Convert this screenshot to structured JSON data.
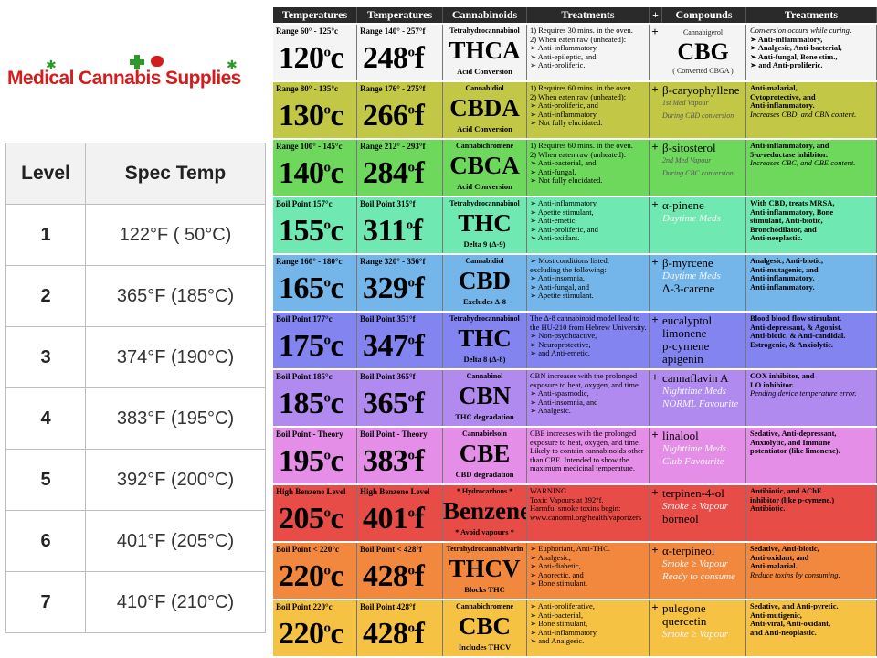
{
  "logo": {
    "text": "Medical Cannabis Supplies"
  },
  "level_table": {
    "headers": [
      "Level",
      "Spec Temp"
    ],
    "rows": [
      {
        "level": "1",
        "temp": "122°F ( 50°C)"
      },
      {
        "level": "2",
        "temp": "365°F (185°C)"
      },
      {
        "level": "3",
        "temp": "374°F (190°C)"
      },
      {
        "level": "4",
        "temp": "383°F (195°C)"
      },
      {
        "level": "5",
        "temp": "392°F (200°C)"
      },
      {
        "level": "6",
        "temp": "401°F (205°C)"
      },
      {
        "level": "7",
        "temp": "410°F (210°C)"
      }
    ]
  },
  "chart": {
    "headers": [
      "Temperatures",
      "Temperatures",
      "Cannabinoids",
      "Treatments",
      "+",
      "Compounds",
      "Treatments"
    ],
    "rows": [
      {
        "color": "#f4f4f4",
        "c_label": "Range 60° - 125°c",
        "c_val": "120",
        "c_unit": "c",
        "f_label": "Range 140° - 257°f",
        "f_val": "248",
        "f_unit": "f",
        "cab_name": "Tetrahydrocannabinol",
        "cab": "THCA",
        "cab_note": "Acid Conversion",
        "treat": [
          "1) Requires 30 mins. in the oven.",
          "2) When eaten raw (unheated):",
          "➢ Anti-inflammatory,",
          "➢ Anti-epileptic, and",
          "➢ Anti-proliferic."
        ],
        "plus": "+",
        "comp": [
          "Cannabigerol",
          "CBG",
          "( Converted CBGA )"
        ],
        "treat2": [
          "Conversion occurs while curing.",
          "➢ Anti-inflammatory,",
          "➢ Analgesic, Anti-bacterial,",
          "➢ Anti-fungal, Bone stim.,",
          "➢ and Anti-proliferic."
        ]
      },
      {
        "color": "#c2c845",
        "c_label": "Range 80° - 135°c",
        "c_val": "130",
        "c_unit": "c",
        "f_label": "Range 176° - 275°f",
        "f_val": "266",
        "f_unit": "f",
        "cab_name": "Cannabidiol",
        "cab": "CBDA",
        "cab_note": "Acid Conversion",
        "treat": [
          "1) Requires 60 mins. in the oven.",
          "2) When eaten raw (unheated):",
          "➢ Anti-proliferic, and",
          "➢ Anti-inflammatory.",
          "➢ Not fully elucidated."
        ],
        "plus": "+",
        "comp": [
          "β-caryophyllene",
          "",
          "1st Med Vapour",
          "During CBD conversion"
        ],
        "treat2": [
          "Anti-malarial,",
          "Cytoprotective, and",
          "Anti-inflammatory.",
          "Increases CBD, and CBN content."
        ]
      },
      {
        "color": "#6ed85c",
        "c_label": "Range 100° - 145°c",
        "c_val": "140",
        "c_unit": "c",
        "f_label": "Range 212° - 293°f",
        "f_val": "284",
        "f_unit": "f",
        "cab_name": "Cannabichromene",
        "cab": "CBCA",
        "cab_note": "Acid Conversion",
        "treat": [
          "1) Requires 60 mins. in the oven.",
          "2) When eaten raw (unheated):",
          "➢ Anti-bacterial, and",
          "➢ Anti-fungal.",
          "➢ Not fully elucidated."
        ],
        "plus": "+",
        "comp": [
          "β-sitosterol",
          "",
          "2nd Med Vapour",
          "During CBC conversion"
        ],
        "treat2": [
          "Anti-inflammatory, and",
          "5-α-reductase inhibitor.",
          "",
          "Increases CBC, and CBE content."
        ]
      },
      {
        "color": "#6fe8b2",
        "c_label": "Boil Point 157°c",
        "c_val": "155",
        "c_unit": "c",
        "f_label": "Boil Point 315°f",
        "f_val": "311",
        "f_unit": "f",
        "cab_name": "Tetrahydrocannabinol",
        "cab": "THC",
        "cab_note": "Delta 9 (Δ-9)",
        "treat": [
          "➢ Anti-inflammatory,",
          "➢ Apetite stimulant,",
          "➢ Anti-emetic,",
          "➢ Anti-proliferic, and",
          "➢ Anti-oxidant."
        ],
        "plus": "+",
        "comp": [
          "α-pinene",
          "",
          "Daytime Meds"
        ],
        "treat2": [
          "With CBD, treats MRSA,",
          "Anti-inflammatory, Bone",
          "stimulant, Anti-biotic,",
          "Bronchodilator, and",
          "Anti-neoplastic."
        ]
      },
      {
        "color": "#74b6e9",
        "c_label": "Range 160° - 180°c",
        "c_val": "165",
        "c_unit": "c",
        "f_label": "Range 320° - 356°f",
        "f_val": "329",
        "f_unit": "f",
        "cab_name": "Cannabidiol",
        "cab": "CBD",
        "cab_note": "Excludes Δ-8",
        "treat": [
          "➢ Most conditions listed,",
          "excluding the following:",
          "➢ Anti-insomnia,",
          "➢ Anti-fungal, and",
          "➢ Apetite stimulant."
        ],
        "plus": "+",
        "comp": [
          "β-myrcene",
          "Daytime Meds",
          "Δ-3-carene"
        ],
        "treat2": [
          "Analgesic, Anti-biotic,",
          "Anti-mutagenic, and",
          "Anti-inflammatory.",
          "Anti-inflammatory."
        ]
      },
      {
        "color": "#8384f0",
        "c_label": "Boil Point 177°c",
        "c_val": "175",
        "c_unit": "c",
        "f_label": "Boil Point 351°f",
        "f_val": "347",
        "f_unit": "f",
        "cab_name": "Tetrahydrocannabinol",
        "cab": "THC",
        "cab_note": "Delta 8 (Δ-8)",
        "treat": [
          "The Δ-8 cannabinoid model lead to",
          "the HU-210 from Hebrew University.",
          "➢ Non-psychoactive,",
          "➢ Neuroprotective,",
          "➢ and Anti-emetic."
        ],
        "plus": "+",
        "comp": [
          "eucalyptol",
          "limonene",
          "p-cymene",
          "apigenin"
        ],
        "treat2": [
          "Blood blood flow stimulant.",
          "Anti-depressant, & Agonist.",
          "Anti-biotic, & Anti-candidal.",
          "Estrogenic, & Anxiolytic."
        ]
      },
      {
        "color": "#b18af0",
        "c_label": "Boil Point 185°c",
        "c_val": "185",
        "c_unit": "c",
        "f_label": "Boil Point 365°f",
        "f_val": "365",
        "f_unit": "f",
        "cab_name": "Cannabinol",
        "cab": "CBN",
        "cab_note": "THC degradation",
        "treat": [
          "CBN increases with the prolonged",
          "exposure to heat, oxygen, and time.",
          "➢ Anti-spasmodic,",
          "➢ Anti-insomnia, and",
          "➢ Analgesic."
        ],
        "plus": "+",
        "comp": [
          "cannaflavin A",
          "Nighttime Meds",
          "NORML Favourite"
        ],
        "treat2": [
          "COX inhibitor, and",
          "LO inhibitor.",
          "",
          "Pending device temperature error."
        ]
      },
      {
        "color": "#e48ee7",
        "c_label": "Boil Point - Theory",
        "c_val": "195",
        "c_unit": "c",
        "f_label": "Boil Point - Theory",
        "f_val": "383",
        "f_unit": "f",
        "cab_name": "Cannabielsoin",
        "cab": "CBE",
        "cab_note": "CBD degradation",
        "treat": [
          "CBE increases with the prolonged",
          "exposure to heat, oxygen, and time.",
          "Likely to contain cannabinoids other",
          "than CBE. Intended to show the",
          "maximum medicinal temperature."
        ],
        "plus": "+",
        "comp": [
          "linalool",
          "Nighttime Meds",
          "Club Favourite"
        ],
        "treat2": [
          "Sedative, Anti-depressant,",
          "Anxiolytic, and Immune",
          "potentiator (like limonene)."
        ]
      },
      {
        "color": "#e84c47",
        "c_label": "High Benzene Level",
        "c_val": "205",
        "c_unit": "c",
        "f_label": "High Benzene Level",
        "f_val": "401",
        "f_unit": "f",
        "cab_name": "* Hydrocarbons *",
        "cab": "Benzene",
        "cab_note": "* Avoid vapours *",
        "treat": [
          "WARNING",
          "Toxic Vapours at 392°f.",
          "Harmful smoke toxins begin:",
          "www.canorml.org/health/vaporizers"
        ],
        "plus": "+",
        "comp": [
          "terpinen-4-ol",
          "Smoke ≥ Vapour",
          "borneol"
        ],
        "treat2": [
          "Antibiotic, and AChE",
          "inhibitor (like p-cymene.)",
          "",
          "Antibiotic."
        ]
      },
      {
        "color": "#f2883e",
        "c_label": "Boil Point < 220°c",
        "c_val": "220",
        "c_unit": "c",
        "f_label": "Boil Point < 428°f",
        "f_val": "428",
        "f_unit": "f",
        "cab_name": "Tetrahydrocannabivarin",
        "cab": "THCV",
        "cab_note": "Blocks THC",
        "treat": [
          "➢ Euphoriant, Anti-THC.",
          "➢ Analgesic,",
          "➢ Anti-diabetic,",
          "➢ Anorectic, and",
          "➢ Bone stimulant."
        ],
        "plus": "+",
        "comp": [
          "α-terpineol",
          "Smoke ≥ Vapour",
          "Ready to consume"
        ],
        "treat2": [
          "Sedative, Anti-biotic,",
          "Anti-oxidant, and",
          "Anti-malarial.",
          "Reduce toxins by consuming."
        ]
      },
      {
        "color": "#f5c243",
        "c_label": "Boil Point 220°c",
        "c_val": "220",
        "c_unit": "c",
        "f_label": "Boil Point 428°f",
        "f_val": "428",
        "f_unit": "f",
        "cab_name": "Cannabichromene",
        "cab": "CBC",
        "cab_note": "Includes THCV",
        "treat": [
          "➢ Anti-proliferative,",
          "➢ Anti-bacterial,",
          "➢ Bone stimulant,",
          "➢ Anti-inflammatory,",
          "➢ and Analgesic."
        ],
        "plus": "+",
        "comp": [
          "pulegone",
          "quercetin",
          "Smoke ≥ Vapour"
        ],
        "treat2": [
          "Sedative, and Anti-pyretic.",
          "",
          "Anti-mutigenic,",
          "Anti-viral, Anti-oxidant,",
          "and Anti-neoplastic."
        ]
      }
    ]
  }
}
